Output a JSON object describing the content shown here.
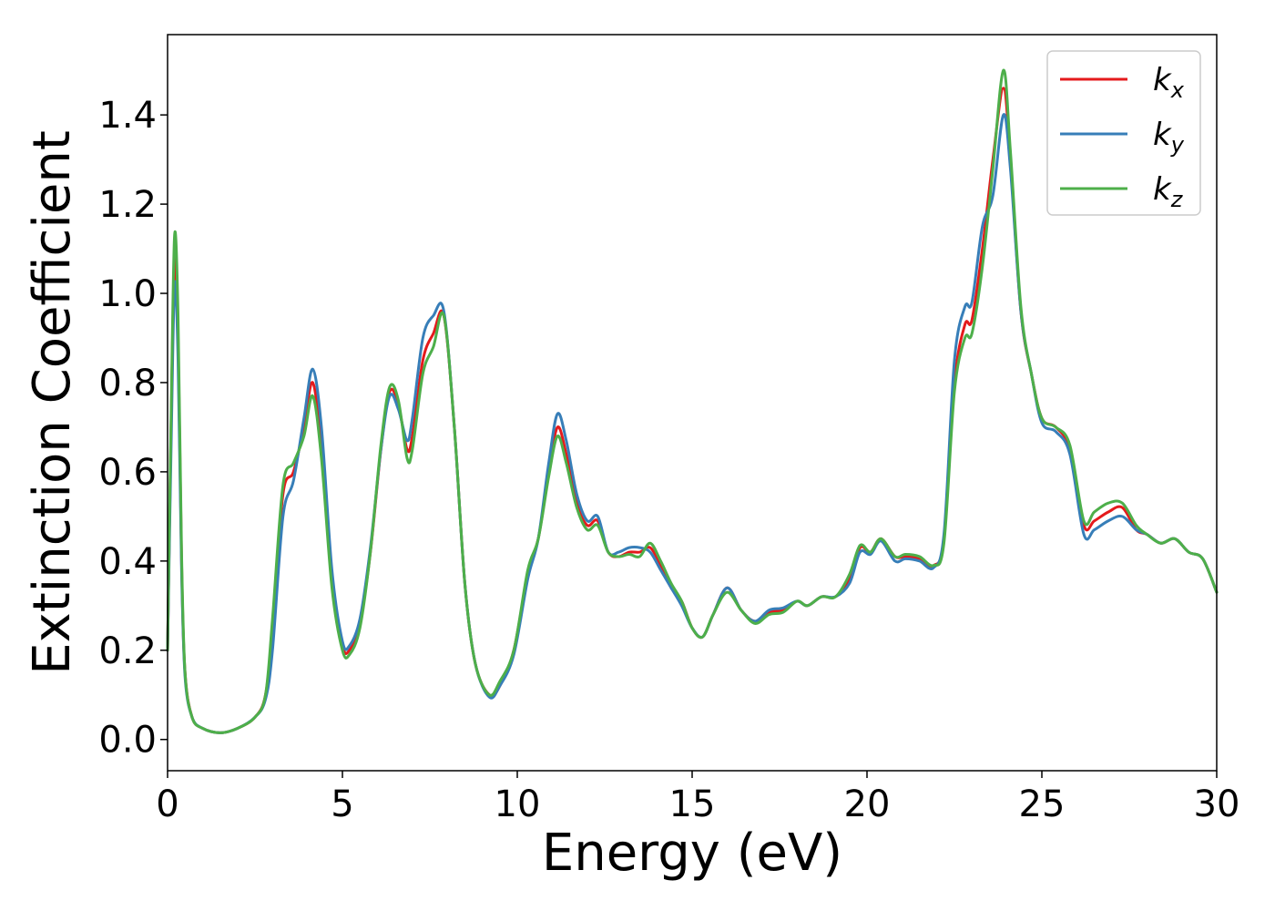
{
  "chart_data": {
    "type": "line",
    "title": "",
    "xlabel": "Energy (eV)",
    "ylabel": "Extinction Coefficient",
    "xlim": [
      0,
      30
    ],
    "ylim": [
      -0.07,
      1.58
    ],
    "xticks": [
      0,
      5,
      10,
      15,
      20,
      25,
      30
    ],
    "xtick_labels": [
      "0",
      "5",
      "10",
      "15",
      "20",
      "25",
      "30"
    ],
    "yticks": [
      0.0,
      0.2,
      0.4,
      0.6,
      0.8,
      1.0,
      1.2,
      1.4
    ],
    "ytick_labels": [
      "0.0",
      "0.2",
      "0.4",
      "0.6",
      "0.8",
      "1.0",
      "1.2",
      "1.4"
    ],
    "grid": false,
    "legend_position": "top-right",
    "series": [
      {
        "name": "k_x",
        "label_main": "k",
        "label_sub": "x",
        "color": "#e41a1c",
        "points": [
          [
            0,
            0.2
          ],
          [
            0.1,
            0.7
          ],
          [
            0.2,
            1.08
          ],
          [
            0.3,
            0.9
          ],
          [
            0.4,
            0.4
          ],
          [
            0.5,
            0.15
          ],
          [
            0.7,
            0.05
          ],
          [
            1.0,
            0.025
          ],
          [
            1.5,
            0.015
          ],
          [
            2.0,
            0.025
          ],
          [
            2.5,
            0.05
          ],
          [
            2.8,
            0.1
          ],
          [
            3.0,
            0.25
          ],
          [
            3.3,
            0.55
          ],
          [
            3.6,
            0.6
          ],
          [
            3.9,
            0.7
          ],
          [
            4.15,
            0.8
          ],
          [
            4.4,
            0.65
          ],
          [
            4.7,
            0.35
          ],
          [
            5.0,
            0.21
          ],
          [
            5.2,
            0.2
          ],
          [
            5.5,
            0.26
          ],
          [
            5.8,
            0.42
          ],
          [
            6.1,
            0.65
          ],
          [
            6.35,
            0.78
          ],
          [
            6.6,
            0.75
          ],
          [
            6.85,
            0.65
          ],
          [
            7.0,
            0.68
          ],
          [
            7.3,
            0.85
          ],
          [
            7.6,
            0.91
          ],
          [
            7.9,
            0.95
          ],
          [
            8.2,
            0.7
          ],
          [
            8.5,
            0.35
          ],
          [
            8.8,
            0.17
          ],
          [
            9.2,
            0.1
          ],
          [
            9.5,
            0.12
          ],
          [
            9.9,
            0.2
          ],
          [
            10.3,
            0.37
          ],
          [
            10.6,
            0.45
          ],
          [
            10.9,
            0.6
          ],
          [
            11.15,
            0.7
          ],
          [
            11.4,
            0.64
          ],
          [
            11.7,
            0.53
          ],
          [
            12.0,
            0.48
          ],
          [
            12.3,
            0.49
          ],
          [
            12.6,
            0.42
          ],
          [
            12.9,
            0.41
          ],
          [
            13.2,
            0.42
          ],
          [
            13.5,
            0.42
          ],
          [
            13.8,
            0.43
          ],
          [
            14.1,
            0.39
          ],
          [
            14.4,
            0.34
          ],
          [
            14.7,
            0.31
          ],
          [
            15.0,
            0.25
          ],
          [
            15.3,
            0.23
          ],
          [
            15.6,
            0.28
          ],
          [
            16.0,
            0.34
          ],
          [
            16.4,
            0.29
          ],
          [
            16.8,
            0.265
          ],
          [
            17.2,
            0.285
          ],
          [
            17.6,
            0.29
          ],
          [
            18.0,
            0.31
          ],
          [
            18.3,
            0.3
          ],
          [
            18.7,
            0.32
          ],
          [
            19.1,
            0.32
          ],
          [
            19.5,
            0.36
          ],
          [
            19.8,
            0.43
          ],
          [
            20.1,
            0.42
          ],
          [
            20.4,
            0.45
          ],
          [
            20.8,
            0.41
          ],
          [
            21.1,
            0.41
          ],
          [
            21.5,
            0.405
          ],
          [
            21.9,
            0.39
          ],
          [
            22.2,
            0.45
          ],
          [
            22.5,
            0.8
          ],
          [
            22.8,
            0.93
          ],
          [
            23.0,
            0.94
          ],
          [
            23.3,
            1.1
          ],
          [
            23.6,
            1.3
          ],
          [
            23.9,
            1.46
          ],
          [
            24.1,
            1.3
          ],
          [
            24.4,
            0.96
          ],
          [
            24.7,
            0.82
          ],
          [
            25.0,
            0.72
          ],
          [
            25.4,
            0.7
          ],
          [
            25.8,
            0.65
          ],
          [
            26.2,
            0.48
          ],
          [
            26.5,
            0.49
          ],
          [
            26.9,
            0.51
          ],
          [
            27.3,
            0.52
          ],
          [
            27.7,
            0.47
          ],
          [
            28.0,
            0.46
          ],
          [
            28.4,
            0.44
          ],
          [
            28.8,
            0.45
          ],
          [
            29.2,
            0.42
          ],
          [
            29.6,
            0.405
          ],
          [
            30.0,
            0.33
          ]
        ]
      },
      {
        "name": "k_y",
        "label_main": "k",
        "label_sub": "y",
        "color": "#377eb8",
        "points": [
          [
            0,
            0.2
          ],
          [
            0.1,
            0.65
          ],
          [
            0.2,
            1.02
          ],
          [
            0.3,
            0.85
          ],
          [
            0.4,
            0.38
          ],
          [
            0.5,
            0.14
          ],
          [
            0.7,
            0.05
          ],
          [
            1.0,
            0.025
          ],
          [
            1.5,
            0.015
          ],
          [
            2.0,
            0.025
          ],
          [
            2.5,
            0.05
          ],
          [
            2.8,
            0.09
          ],
          [
            3.0,
            0.2
          ],
          [
            3.3,
            0.5
          ],
          [
            3.6,
            0.58
          ],
          [
            3.9,
            0.72
          ],
          [
            4.15,
            0.83
          ],
          [
            4.4,
            0.7
          ],
          [
            4.7,
            0.38
          ],
          [
            5.0,
            0.22
          ],
          [
            5.2,
            0.21
          ],
          [
            5.5,
            0.27
          ],
          [
            5.8,
            0.43
          ],
          [
            6.1,
            0.65
          ],
          [
            6.35,
            0.77
          ],
          [
            6.6,
            0.74
          ],
          [
            6.85,
            0.67
          ],
          [
            7.0,
            0.72
          ],
          [
            7.3,
            0.9
          ],
          [
            7.6,
            0.95
          ],
          [
            7.9,
            0.96
          ],
          [
            8.2,
            0.7
          ],
          [
            8.5,
            0.35
          ],
          [
            8.8,
            0.17
          ],
          [
            9.2,
            0.095
          ],
          [
            9.5,
            0.12
          ],
          [
            9.9,
            0.19
          ],
          [
            10.3,
            0.36
          ],
          [
            10.6,
            0.45
          ],
          [
            10.9,
            0.62
          ],
          [
            11.15,
            0.73
          ],
          [
            11.4,
            0.67
          ],
          [
            11.7,
            0.55
          ],
          [
            12.0,
            0.49
          ],
          [
            12.3,
            0.5
          ],
          [
            12.6,
            0.42
          ],
          [
            12.9,
            0.42
          ],
          [
            13.2,
            0.43
          ],
          [
            13.5,
            0.43
          ],
          [
            13.8,
            0.42
          ],
          [
            14.1,
            0.38
          ],
          [
            14.4,
            0.34
          ],
          [
            14.7,
            0.3
          ],
          [
            15.0,
            0.25
          ],
          [
            15.3,
            0.23
          ],
          [
            15.6,
            0.28
          ],
          [
            16.0,
            0.34
          ],
          [
            16.4,
            0.29
          ],
          [
            16.8,
            0.265
          ],
          [
            17.2,
            0.29
          ],
          [
            17.6,
            0.295
          ],
          [
            18.0,
            0.31
          ],
          [
            18.3,
            0.3
          ],
          [
            18.7,
            0.32
          ],
          [
            19.1,
            0.32
          ],
          [
            19.5,
            0.35
          ],
          [
            19.8,
            0.42
          ],
          [
            20.1,
            0.415
          ],
          [
            20.4,
            0.445
          ],
          [
            20.8,
            0.4
          ],
          [
            21.1,
            0.405
          ],
          [
            21.5,
            0.4
          ],
          [
            21.9,
            0.385
          ],
          [
            22.2,
            0.46
          ],
          [
            22.5,
            0.85
          ],
          [
            22.8,
            0.97
          ],
          [
            23.0,
            0.98
          ],
          [
            23.3,
            1.15
          ],
          [
            23.6,
            1.22
          ],
          [
            23.9,
            1.4
          ],
          [
            24.1,
            1.28
          ],
          [
            24.4,
            0.96
          ],
          [
            24.7,
            0.82
          ],
          [
            25.0,
            0.71
          ],
          [
            25.4,
            0.69
          ],
          [
            25.8,
            0.64
          ],
          [
            26.2,
            0.46
          ],
          [
            26.5,
            0.47
          ],
          [
            26.9,
            0.49
          ],
          [
            27.3,
            0.5
          ],
          [
            27.7,
            0.47
          ],
          [
            28.0,
            0.46
          ],
          [
            28.4,
            0.44
          ],
          [
            28.8,
            0.45
          ],
          [
            29.2,
            0.42
          ],
          [
            29.6,
            0.405
          ],
          [
            30.0,
            0.33
          ]
        ]
      },
      {
        "name": "k_z",
        "label_main": "k",
        "label_sub": "z",
        "color": "#4daf4a",
        "points": [
          [
            0,
            0.2
          ],
          [
            0.1,
            0.72
          ],
          [
            0.2,
            1.13
          ],
          [
            0.3,
            0.95
          ],
          [
            0.4,
            0.42
          ],
          [
            0.5,
            0.15
          ],
          [
            0.7,
            0.05
          ],
          [
            1.0,
            0.025
          ],
          [
            1.5,
            0.015
          ],
          [
            2.0,
            0.025
          ],
          [
            2.5,
            0.05
          ],
          [
            2.8,
            0.1
          ],
          [
            3.0,
            0.27
          ],
          [
            3.3,
            0.57
          ],
          [
            3.6,
            0.62
          ],
          [
            3.9,
            0.68
          ],
          [
            4.15,
            0.77
          ],
          [
            4.4,
            0.63
          ],
          [
            4.7,
            0.34
          ],
          [
            5.0,
            0.2
          ],
          [
            5.2,
            0.19
          ],
          [
            5.5,
            0.25
          ],
          [
            5.8,
            0.42
          ],
          [
            6.1,
            0.66
          ],
          [
            6.35,
            0.79
          ],
          [
            6.6,
            0.76
          ],
          [
            6.85,
            0.63
          ],
          [
            7.0,
            0.65
          ],
          [
            7.3,
            0.82
          ],
          [
            7.6,
            0.88
          ],
          [
            7.9,
            0.95
          ],
          [
            8.2,
            0.7
          ],
          [
            8.5,
            0.35
          ],
          [
            8.8,
            0.17
          ],
          [
            9.2,
            0.1
          ],
          [
            9.5,
            0.13
          ],
          [
            9.9,
            0.2
          ],
          [
            10.3,
            0.38
          ],
          [
            10.6,
            0.45
          ],
          [
            10.9,
            0.59
          ],
          [
            11.15,
            0.68
          ],
          [
            11.4,
            0.62
          ],
          [
            11.7,
            0.52
          ],
          [
            12.0,
            0.47
          ],
          [
            12.3,
            0.48
          ],
          [
            12.6,
            0.42
          ],
          [
            12.9,
            0.41
          ],
          [
            13.2,
            0.415
          ],
          [
            13.5,
            0.41
          ],
          [
            13.8,
            0.44
          ],
          [
            14.1,
            0.4
          ],
          [
            14.4,
            0.35
          ],
          [
            14.7,
            0.31
          ],
          [
            15.0,
            0.25
          ],
          [
            15.3,
            0.23
          ],
          [
            15.6,
            0.28
          ],
          [
            16.0,
            0.33
          ],
          [
            16.4,
            0.29
          ],
          [
            16.8,
            0.26
          ],
          [
            17.2,
            0.28
          ],
          [
            17.6,
            0.285
          ],
          [
            18.0,
            0.31
          ],
          [
            18.3,
            0.3
          ],
          [
            18.7,
            0.32
          ],
          [
            19.1,
            0.32
          ],
          [
            19.5,
            0.37
          ],
          [
            19.8,
            0.435
          ],
          [
            20.1,
            0.42
          ],
          [
            20.4,
            0.45
          ],
          [
            20.8,
            0.41
          ],
          [
            21.1,
            0.415
          ],
          [
            21.5,
            0.41
          ],
          [
            21.9,
            0.39
          ],
          [
            22.2,
            0.44
          ],
          [
            22.5,
            0.78
          ],
          [
            22.8,
            0.9
          ],
          [
            23.0,
            0.91
          ],
          [
            23.3,
            1.06
          ],
          [
            23.6,
            1.28
          ],
          [
            23.9,
            1.5
          ],
          [
            24.1,
            1.32
          ],
          [
            24.4,
            0.97
          ],
          [
            24.7,
            0.82
          ],
          [
            25.0,
            0.72
          ],
          [
            25.4,
            0.7
          ],
          [
            25.8,
            0.66
          ],
          [
            26.2,
            0.49
          ],
          [
            26.5,
            0.51
          ],
          [
            26.9,
            0.53
          ],
          [
            27.3,
            0.53
          ],
          [
            27.7,
            0.48
          ],
          [
            28.0,
            0.46
          ],
          [
            28.4,
            0.44
          ],
          [
            28.8,
            0.45
          ],
          [
            29.2,
            0.42
          ],
          [
            29.6,
            0.405
          ],
          [
            30.0,
            0.33
          ]
        ]
      }
    ]
  }
}
